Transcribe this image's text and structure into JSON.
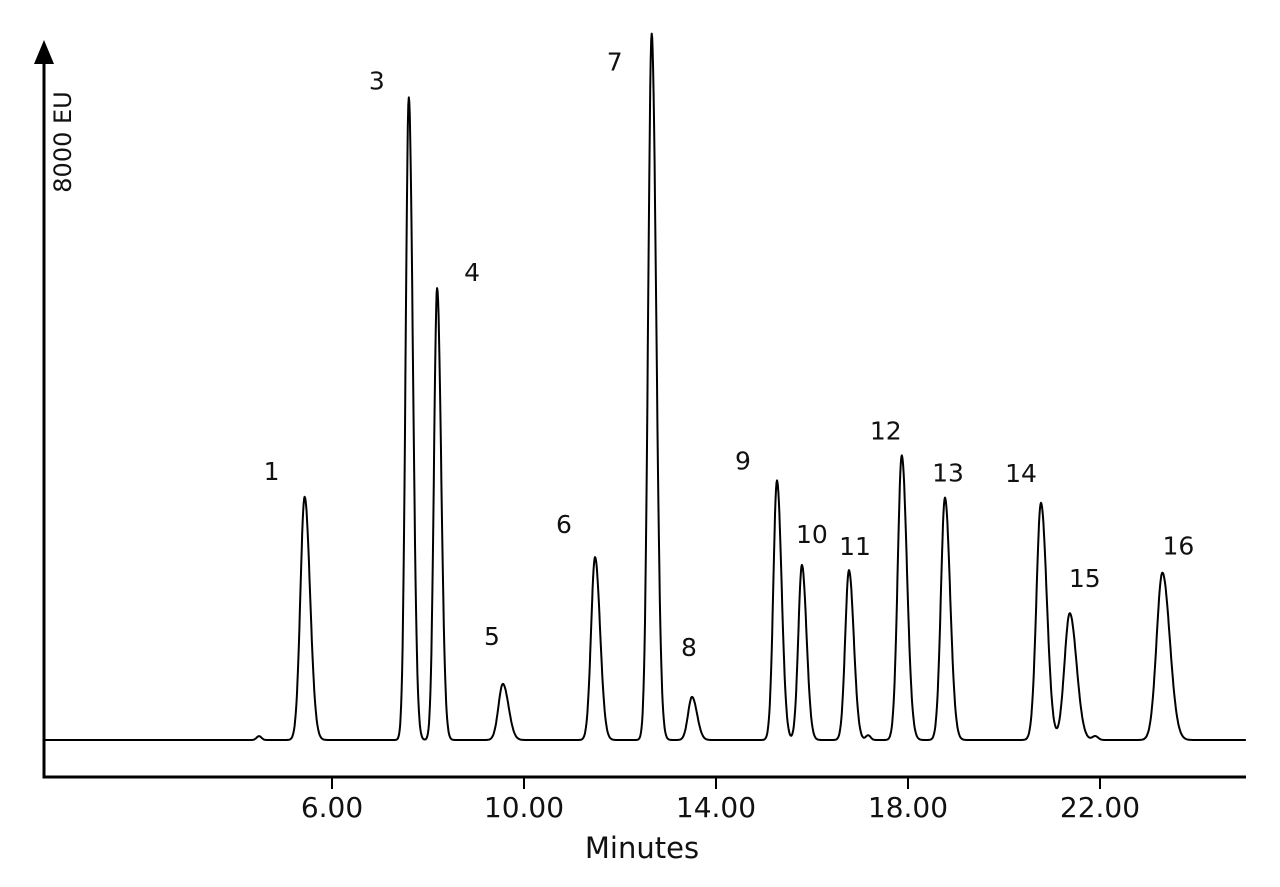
{
  "chart_data": {
    "type": "line",
    "title": "",
    "xlabel": "Minutes",
    "ylabel": "8000 EU",
    "x_tick_values": [
      6,
      10,
      14,
      18,
      22
    ],
    "x_tick_labels": [
      "6.00",
      "10.00",
      "14.00",
      "18.00",
      "22.00"
    ],
    "x_range_minutes": [
      0,
      25
    ],
    "y_axis": {
      "scale_label": "8000 EU",
      "full_scale_eu": 8000,
      "unit": "EU",
      "arrow": "up"
    },
    "grid": false,
    "legend": "none",
    "line_color": "#000000",
    "background_color": "#ffffff",
    "peaks": [
      {
        "label": "1",
        "rt_min": 5.43,
        "height_eu": 2820,
        "sigma_min": 0.088,
        "label_dx": -33,
        "label_dy": -24
      },
      {
        "label": "3",
        "rt_min": 7.6,
        "height_eu": 7450,
        "sigma_min": 0.066,
        "label_dx": -32,
        "label_dy": -15
      },
      {
        "label": "4",
        "rt_min": 8.19,
        "height_eu": 5240,
        "sigma_min": 0.066,
        "label_dx": 35,
        "label_dy": -14
      },
      {
        "label": "5",
        "rt_min": 9.56,
        "height_eu": 650,
        "sigma_min": 0.092,
        "label_dx": -11,
        "label_dy": -46
      },
      {
        "label": "6",
        "rt_min": 11.48,
        "height_eu": 2120,
        "sigma_min": 0.082,
        "label_dx": -31,
        "label_dy": -31
      },
      {
        "label": "7",
        "rt_min": 12.66,
        "height_eu": 8190,
        "sigma_min": 0.074,
        "label_dx": -37,
        "label_dy": 30
      },
      {
        "label": "8",
        "rt_min": 13.5,
        "height_eu": 500,
        "sigma_min": 0.082,
        "label_dx": -3,
        "label_dy": -48
      },
      {
        "label": "9",
        "rt_min": 15.27,
        "height_eu": 3010,
        "sigma_min": 0.075,
        "label_dx": -34,
        "label_dy": -18
      },
      {
        "label": "10",
        "rt_min": 15.79,
        "height_eu": 2030,
        "sigma_min": 0.075,
        "label_dx": 10,
        "label_dy": -29
      },
      {
        "label": "11",
        "rt_min": 16.77,
        "height_eu": 1970,
        "sigma_min": 0.078,
        "label_dx": 6,
        "label_dy": -22
      },
      {
        "label": "12",
        "rt_min": 17.87,
        "height_eu": 3300,
        "sigma_min": 0.084,
        "label_dx": -16,
        "label_dy": -23
      },
      {
        "label": "13",
        "rt_min": 18.77,
        "height_eu": 2810,
        "sigma_min": 0.084,
        "label_dx": 3,
        "label_dy": -23
      },
      {
        "label": "14",
        "rt_min": 20.77,
        "height_eu": 2750,
        "sigma_min": 0.094,
        "label_dx": -20,
        "label_dy": -28
      },
      {
        "label": "15",
        "rt_min": 21.37,
        "height_eu": 1470,
        "sigma_min": 0.11,
        "label_dx": 15,
        "label_dy": -33
      },
      {
        "label": "16",
        "rt_min": 23.3,
        "height_eu": 1940,
        "sigma_min": 0.12,
        "label_dx": 16,
        "label_dy": -25
      }
    ],
    "noise_bumps": [
      {
        "rt_min": 4.48,
        "height_eu": 45,
        "sigma_min": 0.05
      },
      {
        "rt_min": 17.17,
        "height_eu": 55,
        "sigma_min": 0.05
      },
      {
        "rt_min": 21.9,
        "height_eu": 45,
        "sigma_min": 0.06
      }
    ],
    "tailing_factor": 1.28
  }
}
